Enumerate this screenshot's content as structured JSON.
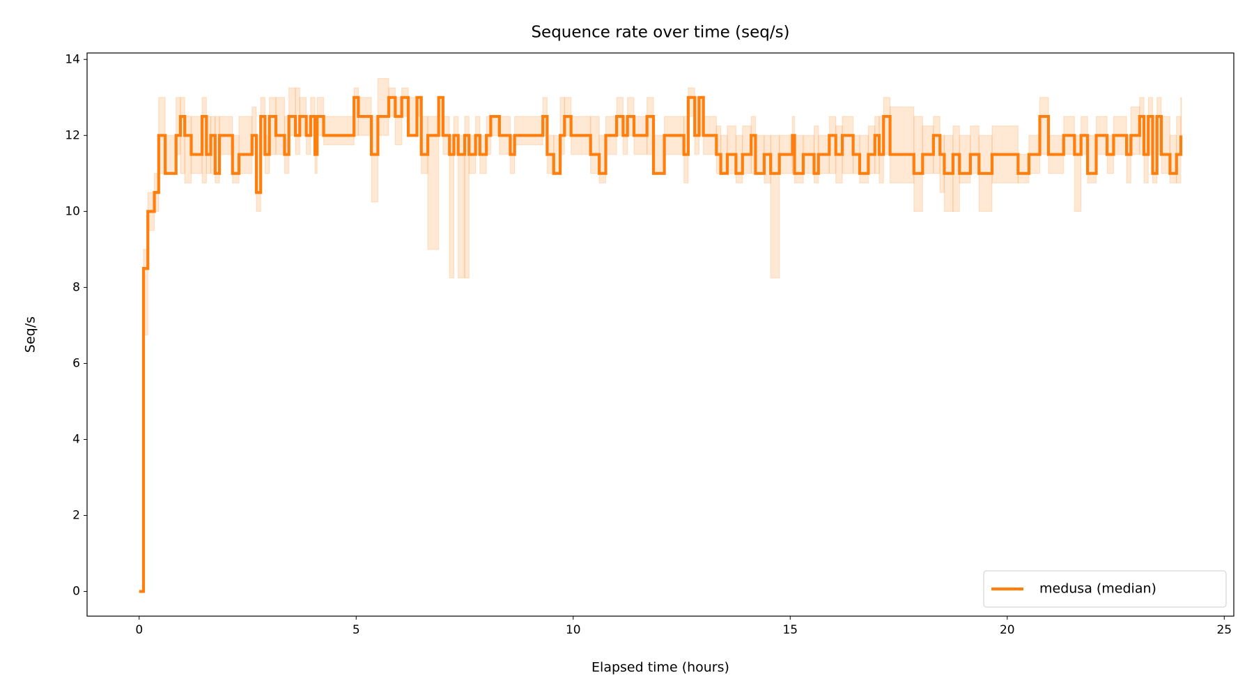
{
  "chart_data": {
    "type": "line",
    "step": "post",
    "title": "Sequence rate over time (seq/s)",
    "x_label": "Elapsed time (hours)",
    "y_label": "Seq/s",
    "legend": "lower right",
    "band_opacity": 0.18,
    "xlim": [
      -1.2,
      25.22
    ],
    "ylim": [
      -0.65,
      14.17
    ],
    "xticks": [
      0,
      5,
      10,
      15,
      20,
      25
    ],
    "yticks": [
      0,
      2,
      4,
      6,
      8,
      10,
      12,
      14
    ],
    "x": [
      0,
      0.1,
      0.2,
      0.35,
      0.45,
      0.6,
      0.85,
      0.95,
      1.05,
      1.2,
      1.45,
      1.55,
      1.65,
      1.75,
      1.85,
      2.15,
      2.3,
      2.6,
      2.7,
      2.8,
      2.9,
      3.0,
      3.15,
      3.35,
      3.45,
      3.6,
      3.7,
      3.85,
      3.95,
      4.05,
      4.1,
      4.25,
      4.95,
      5.05,
      5.35,
      5.5,
      5.75,
      5.9,
      6.05,
      6.2,
      6.4,
      6.5,
      6.65,
      6.9,
      7.0,
      7.15,
      7.25,
      7.35,
      7.5,
      7.6,
      7.75,
      7.85,
      8.0,
      8.1,
      8.3,
      8.55,
      8.65,
      9.3,
      9.4,
      9.55,
      9.7,
      9.8,
      9.95,
      10.4,
      10.6,
      10.75,
      11.0,
      11.15,
      11.25,
      11.4,
      11.7,
      11.85,
      12.1,
      12.55,
      12.65,
      12.8,
      12.9,
      13.0,
      13.3,
      13.4,
      13.55,
      13.75,
      13.9,
      14.1,
      14.2,
      14.4,
      14.55,
      14.75,
      15.05,
      15.1,
      15.3,
      15.55,
      15.65,
      15.9,
      16.05,
      16.2,
      16.45,
      16.6,
      16.8,
      16.95,
      17.05,
      17.15,
      17.3,
      17.85,
      18.05,
      18.3,
      18.45,
      18.55,
      18.75,
      18.9,
      19.15,
      19.35,
      19.65,
      20.25,
      20.5,
      20.75,
      20.95,
      21.3,
      21.55,
      21.7,
      21.85,
      22.05,
      22.3,
      22.45,
      22.75,
      22.85,
      23.05,
      23.15,
      23.25,
      23.35,
      23.45,
      23.55,
      23.75,
      23.9,
      24.0
    ],
    "series": [
      {
        "name": "medusa (median)",
        "color": "#ff7f0e",
        "values": [
          0,
          8.5,
          10,
          10.5,
          12,
          11,
          12,
          12.5,
          12,
          11.5,
          12.5,
          11.5,
          12,
          11,
          12,
          11,
          11.5,
          12,
          10.5,
          12.5,
          11.5,
          12.5,
          12,
          11.5,
          12.5,
          12,
          12.5,
          12,
          12.5,
          11.5,
          12.5,
          12,
          13,
          12.5,
          11.5,
          12.5,
          13,
          12.5,
          13,
          12,
          13,
          11.5,
          12,
          13,
          12,
          11.5,
          12,
          11.5,
          12,
          11.5,
          12,
          11.5,
          12,
          12.5,
          12,
          11.5,
          12,
          12.5,
          11.5,
          11,
          12,
          12.5,
          12,
          11.5,
          11,
          12,
          12.5,
          12,
          12.5,
          12,
          12.5,
          11,
          12,
          11.5,
          13,
          12,
          13,
          12,
          11.5,
          11,
          11.5,
          11,
          11.5,
          12,
          11,
          11.5,
          11,
          11.5,
          12,
          11,
          11.5,
          11,
          11.5,
          12,
          11.5,
          12,
          11.5,
          11,
          11.5,
          12,
          11.5,
          12.5,
          11.5,
          11,
          11.5,
          12,
          11.5,
          11,
          11.5,
          11,
          11.5,
          11,
          11.5,
          11,
          11.5,
          12.5,
          11.5,
          12,
          11.5,
          12,
          11,
          12,
          11.5,
          12,
          11.5,
          12,
          12.5,
          11.5,
          12.5,
          11,
          12.5,
          11.5,
          11,
          11.5,
          12
        ],
        "lower": [
          0,
          6.75,
          9.5,
          10,
          11,
          11,
          11.5,
          11,
          10.75,
          11,
          10.75,
          11,
          11,
          10.75,
          11.5,
          10.75,
          11,
          11.5,
          10,
          11.5,
          11,
          11.5,
          11.5,
          11,
          12,
          11.5,
          12,
          11.5,
          12,
          11,
          12,
          11.75,
          12,
          12,
          10.25,
          12,
          12.5,
          11.75,
          12.5,
          12,
          12.5,
          11,
          9,
          12,
          11.5,
          8.25,
          11.5,
          8.25,
          8.25,
          11,
          11.5,
          11,
          11.5,
          12,
          11.5,
          11,
          11.75,
          12,
          11,
          11,
          11.5,
          12,
          11.5,
          11,
          10.75,
          11.5,
          12,
          11.5,
          12,
          11.5,
          11.5,
          11,
          11.5,
          10.75,
          12.5,
          11.5,
          12,
          11.5,
          11,
          11,
          11,
          10.75,
          11,
          11,
          11,
          10.75,
          8.25,
          11,
          11,
          10.75,
          11,
          10.75,
          11,
          11,
          10.75,
          11,
          11,
          10.75,
          11,
          11,
          10.75,
          11.5,
          10.75,
          10,
          11,
          11,
          10.5,
          10,
          10,
          10.75,
          11,
          10,
          10.75,
          10.75,
          11,
          11.5,
          11,
          11.5,
          10,
          11.5,
          10.75,
          11.5,
          11,
          11.5,
          10.75,
          11.5,
          11.5,
          10.75,
          11.5,
          10.75,
          11.5,
          11,
          10.75,
          10.75,
          11.5
        ],
        "upper": [
          0,
          9,
          10.5,
          11,
          13,
          12,
          13,
          13,
          12.5,
          12.5,
          13,
          12.5,
          12.5,
          12.5,
          12.5,
          12,
          12.5,
          12.75,
          12,
          13,
          12,
          13,
          13,
          12.5,
          13.25,
          13.25,
          13,
          12.5,
          13,
          12,
          13,
          12.5,
          13.25,
          13,
          12.5,
          13.5,
          13.25,
          13,
          13.25,
          13,
          13,
          12.5,
          12.5,
          13,
          12.5,
          12,
          12.5,
          12,
          12.5,
          12,
          12.5,
          12,
          12.5,
          12.5,
          12.5,
          12,
          12.5,
          13,
          12,
          12,
          13,
          13,
          12.5,
          12.5,
          12,
          12.5,
          13,
          12.5,
          13,
          12.5,
          13,
          12,
          12.5,
          12.5,
          13.25,
          13,
          13,
          12.5,
          12.25,
          12,
          12.25,
          12,
          12.25,
          12.5,
          12,
          12,
          12,
          12,
          12.5,
          12,
          12,
          12.25,
          12,
          12.5,
          12.25,
          12.5,
          12,
          12,
          12.25,
          12.5,
          12.5,
          13,
          12.75,
          12.5,
          12.25,
          12.5,
          12,
          12,
          12.25,
          12,
          12.25,
          12,
          12.25,
          11.5,
          12,
          13,
          12,
          12.5,
          12,
          12.5,
          12,
          12.5,
          12,
          12.5,
          12,
          12.75,
          13,
          12.5,
          13,
          12.5,
          13,
          12.5,
          12,
          12.5,
          13
        ]
      }
    ]
  }
}
